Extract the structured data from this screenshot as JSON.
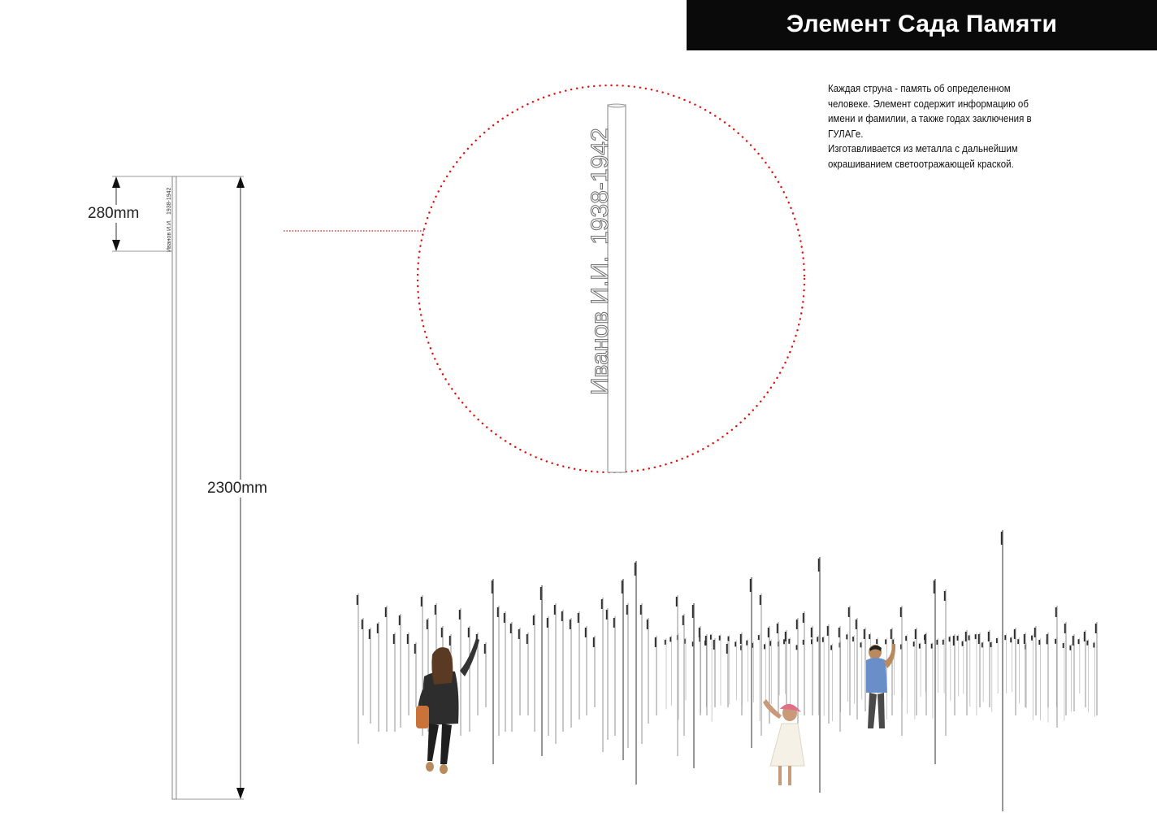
{
  "header": {
    "title": "Элемент Сада Памяти"
  },
  "description": {
    "paragraph1": "Каждая струна - память об определенном человеке. Элемент содержит информацию об имени и фамилии, а также годах заключения в ГУЛАГе.",
    "paragraph2": "Изготавливается из металла с дальнейшим окрашиванием светоотражающей краской."
  },
  "dimensions": {
    "label_height": "280mm",
    "total_height": "2300mm"
  },
  "pole_inscription": {
    "name": "Иванов И.И.",
    "years": "1938-1942"
  },
  "colors": {
    "title_background": "#0a0a0a",
    "title_text": "#ffffff",
    "callout_dots": "#e01010",
    "pole_stroke": "#888888"
  }
}
